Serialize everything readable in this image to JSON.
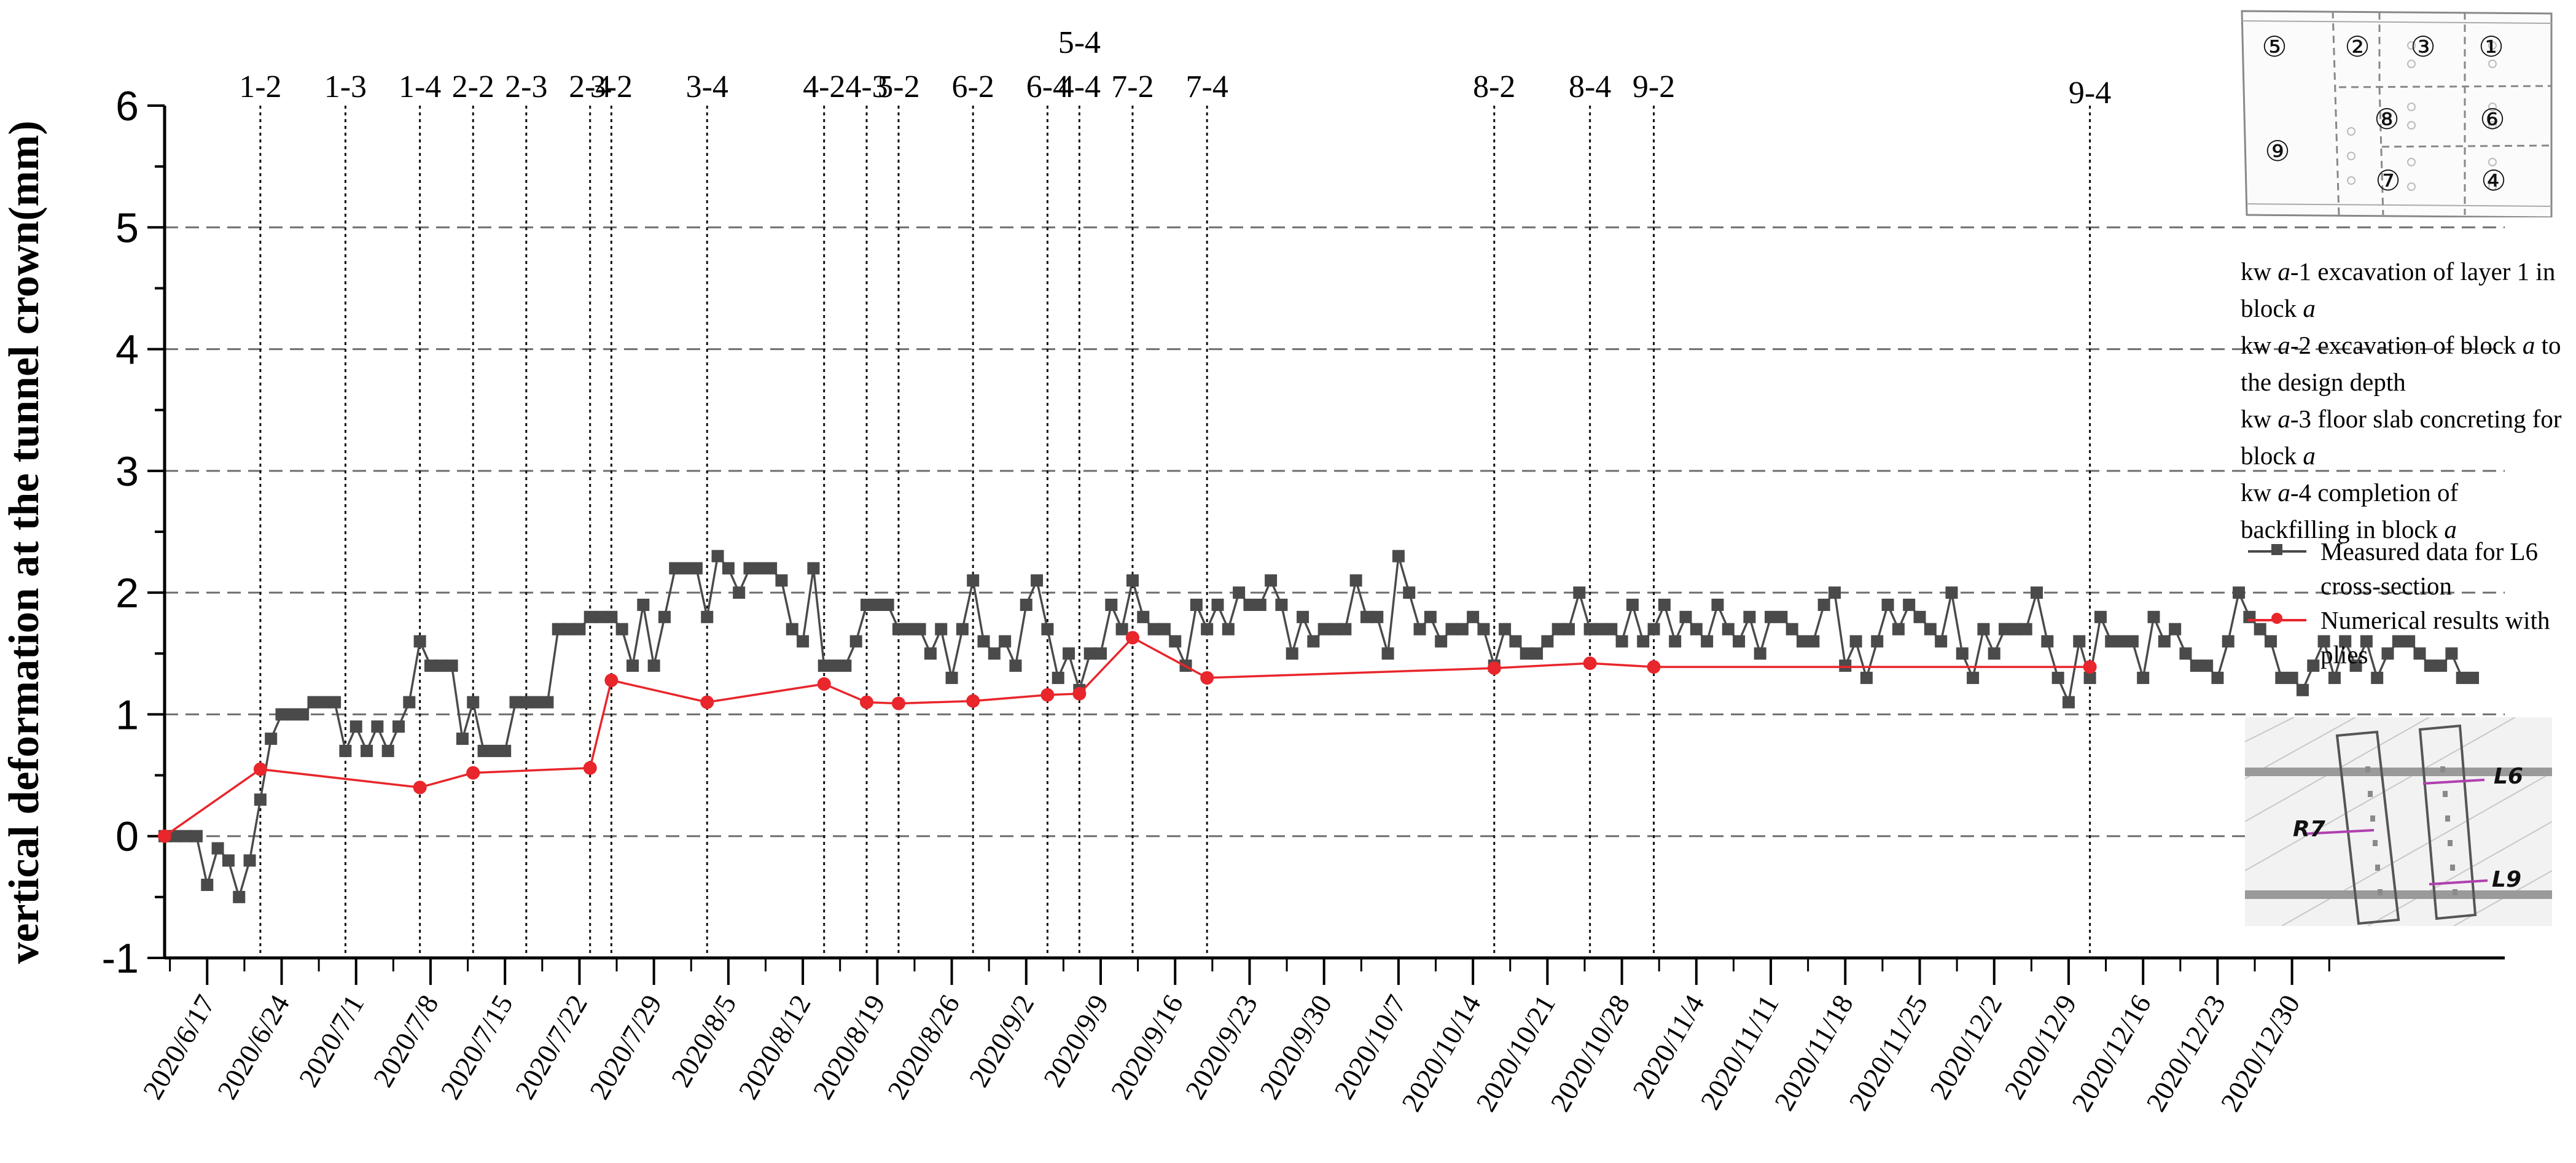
{
  "colors": {
    "measured": "#4a4a4a",
    "numerical": "#e8262b",
    "axis": "#000000",
    "grid": "#6e6e6e"
  },
  "chart_data": {
    "type": "line",
    "ylabel": "vertical deformation at the tunnel crown(mm)",
    "xlabel": "",
    "ylim": [
      -1,
      6
    ],
    "yticks": [
      "-1",
      "0",
      "1",
      "2",
      "3",
      "4",
      "5",
      "6"
    ],
    "grid": "horizontal dashed at 1, 2, 3, 4, 5",
    "x_start": "2020/6/13",
    "x_end": "2021/1/19",
    "x_tick_labels": [
      "2020/6/17",
      "2020/6/24",
      "2020/7/1",
      "2020/7/8",
      "2020/7/15",
      "2020/7/22",
      "2020/7/29",
      "2020/8/5",
      "2020/8/12",
      "2020/8/19",
      "2020/8/26",
      "2020/9/2",
      "2020/9/9",
      "2020/9/16",
      "2020/9/23",
      "2020/9/30",
      "2020/10/7",
      "2020/10/14",
      "2020/10/21",
      "2020/10/28",
      "2020/11/4",
      "2020/11/11",
      "2020/11/18",
      "2020/11/25",
      "2020/12/2",
      "2020/12/9",
      "2020/12/16",
      "2020/12/23",
      "2020/12/30"
    ],
    "stage_markers": [
      {
        "label": "1-2",
        "date": "2020/6/22"
      },
      {
        "label": "1-3",
        "date": "2020/6/30"
      },
      {
        "label": "1-4",
        "date": "2020/7/7"
      },
      {
        "label": "2-2",
        "date": "2020/7/12"
      },
      {
        "label": "2-3",
        "date": "2020/7/17"
      },
      {
        "label": "2-4",
        "date": "2020/7/23"
      },
      {
        "label": "3-2",
        "date": "2020/7/25"
      },
      {
        "label": "3-4",
        "date": "2020/8/3"
      },
      {
        "label": "4-2",
        "date": "2020/8/14"
      },
      {
        "label": "4-3",
        "date": "2020/8/18"
      },
      {
        "label": "5-2",
        "date": "2020/8/21"
      },
      {
        "label": "6-2",
        "date": "2020/8/28"
      },
      {
        "label": "6-4",
        "date": "2020/9/4"
      },
      {
        "label": "5-4",
        "date": "2020/9/7"
      },
      {
        "label": "4-4",
        "date": "2020/9/7"
      },
      {
        "label": "7-2",
        "date": "2020/9/12"
      },
      {
        "label": "7-4",
        "date": "2020/9/19"
      },
      {
        "label": "8-2",
        "date": "2020/10/16"
      },
      {
        "label": "8-4",
        "date": "2020/10/25"
      },
      {
        "label": "9-2",
        "date": "2020/10/31"
      },
      {
        "label": "9-4",
        "date": "2020/12/11"
      }
    ],
    "series": [
      {
        "name": "Measured data for L6 cross-section",
        "points": [
          [
            "2020/6/13",
            0
          ],
          [
            "2020/6/14",
            0
          ],
          [
            "2020/6/15",
            0
          ],
          [
            "2020/6/16",
            0
          ],
          [
            "2020/6/17",
            -0.4
          ],
          [
            "2020/6/18",
            -0.1
          ],
          [
            "2020/6/19",
            -0.2
          ],
          [
            "2020/6/20",
            -0.5
          ],
          [
            "2020/6/21",
            -0.2
          ],
          [
            "2020/6/22",
            0.3
          ],
          [
            "2020/6/23",
            0.8
          ],
          [
            "2020/6/24",
            1.0
          ],
          [
            "2020/6/25",
            1.0
          ],
          [
            "2020/6/26",
            1.0
          ],
          [
            "2020/6/27",
            1.1
          ],
          [
            "2020/6/28",
            1.1
          ],
          [
            "2020/6/29",
            1.1
          ],
          [
            "2020/6/30",
            0.7
          ],
          [
            "2020/7/1",
            0.9
          ],
          [
            "2020/7/2",
            0.7
          ],
          [
            "2020/7/3",
            0.9
          ],
          [
            "2020/7/4",
            0.7
          ],
          [
            "2020/7/5",
            0.9
          ],
          [
            "2020/7/6",
            1.1
          ],
          [
            "2020/7/7",
            1.6
          ],
          [
            "2020/7/8",
            1.4
          ],
          [
            "2020/7/9",
            1.4
          ],
          [
            "2020/7/10",
            1.4
          ],
          [
            "2020/7/11",
            0.8
          ],
          [
            "2020/7/12",
            1.1
          ],
          [
            "2020/7/13",
            0.7
          ],
          [
            "2020/7/14",
            0.7
          ],
          [
            "2020/7/15",
            0.7
          ],
          [
            "2020/7/16",
            1.1
          ],
          [
            "2020/7/17",
            1.1
          ],
          [
            "2020/7/18",
            1.1
          ],
          [
            "2020/7/19",
            1.1
          ],
          [
            "2020/7/20",
            1.7
          ],
          [
            "2020/7/21",
            1.7
          ],
          [
            "2020/7/22",
            1.7
          ],
          [
            "2020/7/23",
            1.8
          ],
          [
            "2020/7/24",
            1.8
          ],
          [
            "2020/7/25",
            1.8
          ],
          [
            "2020/7/26",
            1.7
          ],
          [
            "2020/7/27",
            1.4
          ],
          [
            "2020/7/28",
            1.9
          ],
          [
            "2020/7/29",
            1.4
          ],
          [
            "2020/7/30",
            1.8
          ],
          [
            "2020/7/31",
            2.2
          ],
          [
            "2020/8/1",
            2.2
          ],
          [
            "2020/8/2",
            2.2
          ],
          [
            "2020/8/3",
            1.8
          ],
          [
            "2020/8/4",
            2.3
          ],
          [
            "2020/8/5",
            2.2
          ],
          [
            "2020/8/6",
            2.0
          ],
          [
            "2020/8/7",
            2.2
          ],
          [
            "2020/8/8",
            2.2
          ],
          [
            "2020/8/9",
            2.2
          ],
          [
            "2020/8/10",
            2.1
          ],
          [
            "2020/8/11",
            1.7
          ],
          [
            "2020/8/12",
            1.6
          ],
          [
            "2020/8/13",
            2.2
          ],
          [
            "2020/8/14",
            1.4
          ],
          [
            "2020/8/15",
            1.4
          ],
          [
            "2020/8/16",
            1.4
          ],
          [
            "2020/8/17",
            1.6
          ],
          [
            "2020/8/18",
            1.9
          ],
          [
            "2020/8/19",
            1.9
          ],
          [
            "2020/8/20",
            1.9
          ],
          [
            "2020/8/21",
            1.7
          ],
          [
            "2020/8/22",
            1.7
          ],
          [
            "2020/8/23",
            1.7
          ],
          [
            "2020/8/24",
            1.5
          ],
          [
            "2020/8/25",
            1.7
          ],
          [
            "2020/8/26",
            1.3
          ],
          [
            "2020/8/27",
            1.7
          ],
          [
            "2020/8/28",
            2.1
          ],
          [
            "2020/8/29",
            1.6
          ],
          [
            "2020/8/30",
            1.5
          ],
          [
            "2020/8/31",
            1.6
          ],
          [
            "2020/9/1",
            1.4
          ],
          [
            "2020/9/2",
            1.9
          ],
          [
            "2020/9/3",
            2.1
          ],
          [
            "2020/9/4",
            1.7
          ],
          [
            "2020/9/5",
            1.3
          ],
          [
            "2020/9/6",
            1.5
          ],
          [
            "2020/9/7",
            1.2
          ],
          [
            "2020/9/8",
            1.5
          ],
          [
            "2020/9/9",
            1.5
          ],
          [
            "2020/9/10",
            1.9
          ],
          [
            "2020/9/11",
            1.7
          ],
          [
            "2020/9/12",
            2.1
          ],
          [
            "2020/9/13",
            1.8
          ],
          [
            "2020/9/14",
            1.7
          ],
          [
            "2020/9/15",
            1.7
          ],
          [
            "2020/9/16",
            1.6
          ],
          [
            "2020/9/17",
            1.4
          ],
          [
            "2020/9/18",
            1.9
          ],
          [
            "2020/9/19",
            1.7
          ],
          [
            "2020/9/20",
            1.9
          ],
          [
            "2020/9/21",
            1.7
          ],
          [
            "2020/9/22",
            2.0
          ],
          [
            "2020/9/23",
            1.9
          ],
          [
            "2020/9/24",
            1.9
          ],
          [
            "2020/9/25",
            2.1
          ],
          [
            "2020/9/26",
            1.9
          ],
          [
            "2020/9/27",
            1.5
          ],
          [
            "2020/9/28",
            1.8
          ],
          [
            "2020/9/29",
            1.6
          ],
          [
            "2020/9/30",
            1.7
          ],
          [
            "2020/10/1",
            1.7
          ],
          [
            "2020/10/2",
            1.7
          ],
          [
            "2020/10/3",
            2.1
          ],
          [
            "2020/10/4",
            1.8
          ],
          [
            "2020/10/5",
            1.8
          ],
          [
            "2020/10/6",
            1.5
          ],
          [
            "2020/10/7",
            2.3
          ],
          [
            "2020/10/8",
            2.0
          ],
          [
            "2020/10/9",
            1.7
          ],
          [
            "2020/10/10",
            1.8
          ],
          [
            "2020/10/11",
            1.6
          ],
          [
            "2020/10/12",
            1.7
          ],
          [
            "2020/10/13",
            1.7
          ],
          [
            "2020/10/14",
            1.8
          ],
          [
            "2020/10/15",
            1.7
          ],
          [
            "2020/10/16",
            1.4
          ],
          [
            "2020/10/17",
            1.7
          ],
          [
            "2020/10/18",
            1.6
          ],
          [
            "2020/10/19",
            1.5
          ],
          [
            "2020/10/20",
            1.5
          ],
          [
            "2020/10/21",
            1.6
          ],
          [
            "2020/10/22",
            1.7
          ],
          [
            "2020/10/23",
            1.7
          ],
          [
            "2020/10/24",
            2.0
          ],
          [
            "2020/10/25",
            1.7
          ],
          [
            "2020/10/26",
            1.7
          ],
          [
            "2020/10/27",
            1.7
          ],
          [
            "2020/10/28",
            1.6
          ],
          [
            "2020/10/29",
            1.9
          ],
          [
            "2020/10/30",
            1.6
          ],
          [
            "2020/10/31",
            1.7
          ],
          [
            "2020/11/1",
            1.9
          ],
          [
            "2020/11/2",
            1.6
          ],
          [
            "2020/11/3",
            1.8
          ],
          [
            "2020/11/4",
            1.7
          ],
          [
            "2020/11/5",
            1.6
          ],
          [
            "2020/11/6",
            1.9
          ],
          [
            "2020/11/7",
            1.7
          ],
          [
            "2020/11/8",
            1.6
          ],
          [
            "2020/11/9",
            1.8
          ],
          [
            "2020/11/10",
            1.5
          ],
          [
            "2020/11/11",
            1.8
          ],
          [
            "2020/11/12",
            1.8
          ],
          [
            "2020/11/13",
            1.7
          ],
          [
            "2020/11/14",
            1.6
          ],
          [
            "2020/11/15",
            1.6
          ],
          [
            "2020/11/16",
            1.9
          ],
          [
            "2020/11/17",
            2.0
          ],
          [
            "2020/11/18",
            1.4
          ],
          [
            "2020/11/19",
            1.6
          ],
          [
            "2020/11/20",
            1.3
          ],
          [
            "2020/11/21",
            1.6
          ],
          [
            "2020/11/22",
            1.9
          ],
          [
            "2020/11/23",
            1.7
          ],
          [
            "2020/11/24",
            1.9
          ],
          [
            "2020/11/25",
            1.8
          ],
          [
            "2020/11/26",
            1.7
          ],
          [
            "2020/11/27",
            1.6
          ],
          [
            "2020/11/28",
            2.0
          ],
          [
            "2020/11/29",
            1.5
          ],
          [
            "2020/11/30",
            1.3
          ],
          [
            "2020/12/1",
            1.7
          ],
          [
            "2020/12/2",
            1.5
          ],
          [
            "2020/12/3",
            1.7
          ],
          [
            "2020/12/4",
            1.7
          ],
          [
            "2020/12/5",
            1.7
          ],
          [
            "2020/12/6",
            2.0
          ],
          [
            "2020/12/7",
            1.6
          ],
          [
            "2020/12/8",
            1.3
          ],
          [
            "2020/12/9",
            1.1
          ],
          [
            "2020/12/10",
            1.6
          ],
          [
            "2020/12/11",
            1.3
          ],
          [
            "2020/12/12",
            1.8
          ],
          [
            "2020/12/13",
            1.6
          ],
          [
            "2020/12/14",
            1.6
          ],
          [
            "2020/12/15",
            1.6
          ],
          [
            "2020/12/16",
            1.3
          ],
          [
            "2020/12/17",
            1.8
          ],
          [
            "2020/12/18",
            1.6
          ],
          [
            "2020/12/19",
            1.7
          ],
          [
            "2020/12/20",
            1.5
          ],
          [
            "2020/12/21",
            1.4
          ],
          [
            "2020/12/22",
            1.4
          ],
          [
            "2020/12/23",
            1.3
          ],
          [
            "2020/12/24",
            1.6
          ],
          [
            "2020/12/25",
            2.0
          ],
          [
            "2020/12/26",
            1.8
          ],
          [
            "2020/12/27",
            1.7
          ],
          [
            "2020/12/28",
            1.6
          ],
          [
            "2020/12/29",
            1.3
          ],
          [
            "2020/12/30",
            1.3
          ],
          [
            "2020/12/31",
            1.2
          ],
          [
            "2021/1/1",
            1.4
          ],
          [
            "2021/1/2",
            1.6
          ],
          [
            "2021/1/3",
            1.3
          ],
          [
            "2021/1/4",
            1.6
          ],
          [
            "2021/1/5",
            1.4
          ],
          [
            "2021/1/6",
            1.6
          ],
          [
            "2021/1/7",
            1.3
          ],
          [
            "2021/1/8",
            1.5
          ],
          [
            "2021/1/9",
            1.6
          ],
          [
            "2021/1/10",
            1.6
          ],
          [
            "2021/1/11",
            1.5
          ],
          [
            "2021/1/12",
            1.4
          ],
          [
            "2021/1/13",
            1.4
          ],
          [
            "2021/1/14",
            1.5
          ],
          [
            "2021/1/15",
            1.3
          ],
          [
            "2021/1/16",
            1.3
          ]
        ]
      },
      {
        "name": "Numerical results with plies",
        "points": [
          [
            "2020/6/13",
            0
          ],
          [
            "2020/6/22",
            0.55
          ],
          [
            "2020/7/7",
            0.4
          ],
          [
            "2020/7/12",
            0.52
          ],
          [
            "2020/7/23",
            0.56
          ],
          [
            "2020/7/25",
            1.28
          ],
          [
            "2020/8/3",
            1.1
          ],
          [
            "2020/8/14",
            1.25
          ],
          [
            "2020/8/18",
            1.1
          ],
          [
            "2020/8/21",
            1.09
          ],
          [
            "2020/8/28",
            1.11
          ],
          [
            "2020/9/4",
            1.16
          ],
          [
            "2020/9/7",
            1.17
          ],
          [
            "2020/9/12",
            1.63
          ],
          [
            "2020/9/19",
            1.3
          ],
          [
            "2020/10/16",
            1.38
          ],
          [
            "2020/10/25",
            1.42
          ],
          [
            "2020/10/31",
            1.39
          ],
          [
            "2020/12/11",
            1.39
          ]
        ]
      }
    ]
  },
  "legend": {
    "stage_notes": [
      {
        "prefix": "kw ",
        "var": "a",
        "rest": "-1 excavation of layer 1 in block ",
        "var2": "a"
      },
      {
        "prefix": "kw ",
        "var": "a",
        "rest": "-2 excavation of block ",
        "var2": "a",
        "tail": " to the design depth"
      },
      {
        "prefix": "kw ",
        "var": "a",
        "rest": "-3 floor slab concreting for block ",
        "var2": "a"
      },
      {
        "prefix": "kw ",
        "var": "a",
        "rest": "-4 completion of backfilling in block ",
        "var2": "a"
      }
    ],
    "series_labels": [
      "Measured data for L6 cross-section",
      "Numerical results with plies"
    ]
  },
  "inset_plan": {
    "blocks": [
      "⑤",
      "②",
      "③",
      "①",
      "⑧",
      "⑥",
      "⑨",
      "⑦",
      "④"
    ]
  },
  "inset_map": {
    "labels": [
      "L6",
      "R7",
      "L9"
    ]
  }
}
